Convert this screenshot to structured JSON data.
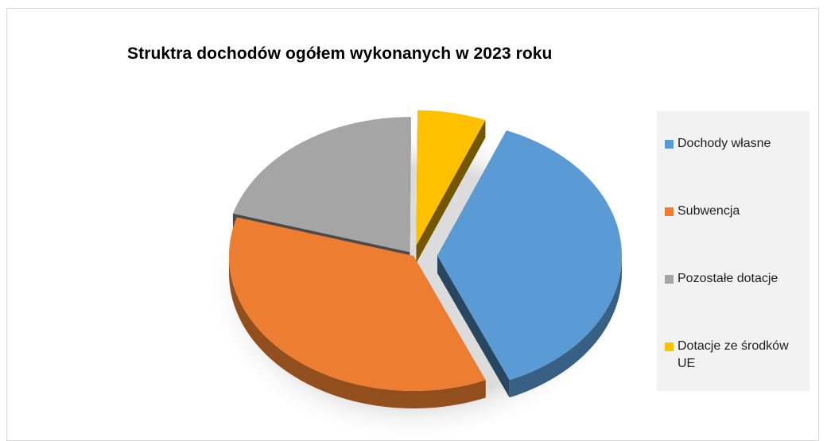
{
  "chart_data": {
    "type": "pie",
    "title": "Struktra dochodów ogółem wykonanych w 2023 roku",
    "slices": [
      {
        "name": "Dochody własne",
        "value": 37.5,
        "color": "#5b9bd5"
      },
      {
        "name": "Subwencja",
        "value": 36.0,
        "color": "#ed7d31"
      },
      {
        "name": "Pozostałe dotacje",
        "value": 20.5,
        "color": "#a5a5a5"
      },
      {
        "name": "Dotacje ze środków UE",
        "value": 6.0,
        "color": "#ffc000"
      }
    ],
    "legend_position": "right",
    "style": "3d-exploded"
  },
  "legend": [
    {
      "label": "Dochody własne",
      "color": "#5b9bd5"
    },
    {
      "label": "Subwencja",
      "color": "#ed7d31"
    },
    {
      "label": "Pozostałe dotacje",
      "color": "#a5a5a5"
    },
    {
      "label": "Dotacje ze środków UE",
      "color": "#ffc000"
    }
  ]
}
